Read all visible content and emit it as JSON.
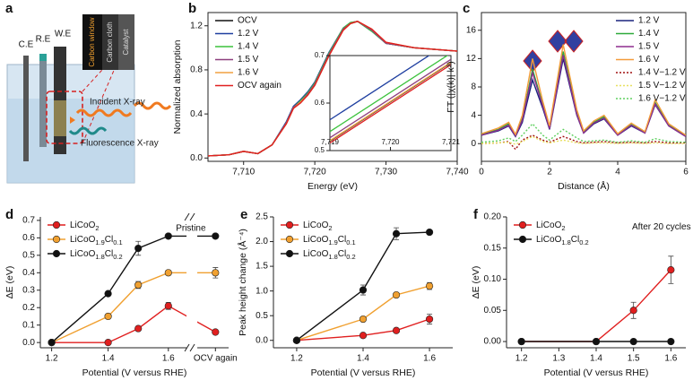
{
  "diagram": {
    "label": "a",
    "electrodes": [
      "C.E",
      "R.E",
      "W.E"
    ],
    "layers": [
      "Carbon window",
      "Carbon cloth",
      "Catalyst"
    ],
    "incident": "Incident X-ray",
    "fluorescence": "Fluorescence X-ray"
  },
  "chart_data": [
    {
      "type": "line",
      "label": "b",
      "x_label": "Energy (eV)",
      "y_label": "Normalized absorption",
      "x": [
        7705,
        7708,
        7710,
        7712,
        7714,
        7716,
        7717,
        7718,
        7719,
        7720,
        7722,
        7724,
        7725,
        7726,
        7728,
        7730,
        7734,
        7740
      ],
      "xlim": [
        7705,
        7740
      ],
      "xticks": [
        {
          "value": 7710,
          "label": "7,710"
        },
        {
          "value": 7720,
          "label": "7,720"
        },
        {
          "value": 7730,
          "label": "7,730"
        },
        {
          "value": 7740,
          "label": "7,740"
        }
      ],
      "ylim": [
        -0.03,
        1.32
      ],
      "yticks": [
        {
          "value": 0,
          "label": "0.0"
        },
        0.4,
        0.8,
        1.2
      ],
      "legend": "upper left",
      "series": [
        {
          "name": "OCV",
          "color": "#111111",
          "values": [
            0.02,
            0.03,
            0.06,
            0.04,
            0.12,
            0.32,
            0.46,
            0.51,
            0.57,
            0.66,
            0.93,
            1.17,
            1.22,
            1.24,
            1.16,
            1.04,
            1.0,
            0.97
          ]
        },
        {
          "name": "1.2 V",
          "color": "#1f3fa0",
          "values": [
            0.02,
            0.03,
            0.06,
            0.04,
            0.12,
            0.33,
            0.47,
            0.53,
            0.6,
            0.69,
            0.96,
            1.18,
            1.23,
            1.24,
            1.15,
            1.04,
            1.0,
            0.97
          ]
        },
        {
          "name": "1.4 V",
          "color": "#3cc23c",
          "values": [
            0.02,
            0.03,
            0.06,
            0.04,
            0.12,
            0.32,
            0.46,
            0.52,
            0.59,
            0.68,
            0.95,
            1.18,
            1.23,
            1.24,
            1.15,
            1.04,
            1.0,
            0.97
          ]
        },
        {
          "name": "1.5 V",
          "color": "#8e3f7e",
          "values": [
            0.02,
            0.03,
            0.06,
            0.04,
            0.12,
            0.32,
            0.46,
            0.51,
            0.58,
            0.67,
            0.94,
            1.17,
            1.22,
            1.24,
            1.16,
            1.04,
            1.0,
            0.97
          ]
        },
        {
          "name": "1.6 V",
          "color": "#f0a040",
          "values": [
            0.02,
            0.03,
            0.06,
            0.04,
            0.12,
            0.31,
            0.45,
            0.51,
            0.57,
            0.66,
            0.93,
            1.16,
            1.22,
            1.24,
            1.17,
            1.05,
            1.0,
            0.97
          ]
        },
        {
          "name": "OCV again",
          "color": "#e02020",
          "values": [
            0.02,
            0.03,
            0.06,
            0.04,
            0.12,
            0.31,
            0.45,
            0.5,
            0.57,
            0.66,
            0.93,
            1.16,
            1.22,
            1.24,
            1.17,
            1.05,
            1.0,
            0.97
          ]
        }
      ]
    },
    {
      "type": "line",
      "x": [
        7719,
        7721
      ],
      "xlim": [
        7719,
        7721
      ],
      "xticks": [
        {
          "value": 7719,
          "label": "7,719"
        },
        {
          "value": 7720,
          "label": "7,720"
        },
        {
          "value": 7721,
          "label": "7,721"
        }
      ],
      "ylim": [
        0.5,
        0.7
      ],
      "yticks": [
        0.5,
        0.6,
        0.7
      ],
      "series": [
        {
          "color": "#111111",
          "values": [
            0.52,
            0.685
          ]
        },
        {
          "color": "#1f3fa0",
          "values": [
            0.565,
            0.73
          ]
        },
        {
          "color": "#3cc23c",
          "values": [
            0.54,
            0.705
          ]
        },
        {
          "color": "#8e3f7e",
          "values": [
            0.527,
            0.692
          ]
        },
        {
          "color": "#f0a040",
          "values": [
            0.521,
            0.686
          ]
        },
        {
          "color": "#e02020",
          "values": [
            0.516,
            0.681
          ]
        }
      ]
    },
    {
      "type": "line",
      "label": "c",
      "x_label": "Distance (Å)",
      "y_label": "FT (|χ(k)| k³)",
      "x": [
        0,
        0.5,
        0.8,
        1.0,
        1.2,
        1.5,
        1.8,
        2.0,
        2.4,
        2.8,
        3.0,
        3.3,
        3.6,
        4.0,
        4.4,
        4.8,
        5.1,
        5.5,
        6.0
      ],
      "xlim": [
        0,
        6
      ],
      "xticks": [
        0,
        2,
        4,
        6
      ],
      "ylim": [
        -2.5,
        18.5
      ],
      "yticks": [
        0,
        4,
        8,
        12,
        16
      ],
      "legend": "upper right",
      "series": [
        {
          "name": "1.2 V",
          "color": "#1a237e",
          "values": [
            1.2,
            1.8,
            2.5,
            1.0,
            3,
            9,
            5,
            2,
            12,
            4,
            1.5,
            2.8,
            3.5,
            1.2,
            2.5,
            1.5,
            5.5,
            2.5,
            1.0
          ]
        },
        {
          "name": "1.4 V",
          "color": "#2eaa3a",
          "values": [
            1.3,
            2,
            2.8,
            1.2,
            3.5,
            10.5,
            5.5,
            2.2,
            13,
            4.3,
            1.6,
            3,
            3.8,
            1.3,
            2.7,
            1.6,
            5.8,
            2.6,
            1.1
          ]
        },
        {
          "name": "1.5 V",
          "color": "#8e2d8e",
          "values": [
            1.2,
            1.9,
            2.6,
            1.1,
            3.3,
            10,
            5.3,
            2.1,
            12.5,
            4.1,
            1.5,
            2.9,
            3.6,
            1.2,
            2.6,
            1.5,
            5.6,
            2.5,
            1.0
          ]
        },
        {
          "name": "1.6 V",
          "color": "#f39c3a",
          "values": [
            1.4,
            2.2,
            3.0,
            1.3,
            4,
            12,
            6,
            2.5,
            14,
            4.8,
            1.8,
            3.2,
            4,
            1.4,
            2.9,
            1.7,
            6.2,
            2.8,
            1.2
          ]
        },
        {
          "name": "1.4 V−1.2 V",
          "color": "#a01010",
          "dash": true,
          "values": [
            0,
            0.1,
            0.3,
            -0.8,
            0.5,
            1.2,
            0.5,
            0.2,
            1.0,
            0.3,
            0.1,
            0.2,
            0.3,
            0.1,
            0.2,
            0.1,
            0.3,
            0.1,
            0.1
          ]
        },
        {
          "name": "1.5 V−1.2 V",
          "color": "#e8e060",
          "dash": true,
          "values": [
            0,
            0.1,
            0.2,
            -0.1,
            0.3,
            1.0,
            0.3,
            0.1,
            0.5,
            0.1,
            0,
            0.1,
            0.1,
            0,
            0.1,
            0,
            0.1,
            0,
            0
          ]
        },
        {
          "name": "1.6 V−1.2 V",
          "color": "#60d060",
          "dash": true,
          "values": [
            0.2,
            0.4,
            0.8,
            0.3,
            1.2,
            2.8,
            1.2,
            0.5,
            2.0,
            0.8,
            0.3,
            0.4,
            0.5,
            0.2,
            0.4,
            0.2,
            0.7,
            0.3,
            0.2
          ]
        }
      ]
    },
    {
      "type": "line",
      "label": "d",
      "x_label": "Potential (V versus RHE)",
      "y_label": "ΔE (eV)",
      "annotation": "Pristine",
      "categories": [
        "1.2",
        "1.4",
        null,
        "1.6",
        "OCV again"
      ],
      "markers": true,
      "ylim": [
        -0.03,
        0.72
      ],
      "yticks": [
        {
          "value": 0,
          "label": "0.0"
        },
        0.1,
        0.2,
        0.3,
        0.4,
        0.5,
        0.6,
        0.7
      ],
      "legend": "upper left",
      "series": [
        {
          "name": "LiCoO2",
          "color": "#e01f1f",
          "values": [
            0,
            0,
            0.08,
            0.21,
            0.06
          ],
          "errors": [
            0,
            0,
            0.01,
            0.02,
            0.01
          ]
        },
        {
          "name": "LiCoO1.9Cl0.1",
          "color": "#f0a030",
          "values": [
            0,
            0.15,
            0.33,
            0.4,
            0.4
          ],
          "errors": [
            0,
            0.01,
            0.02,
            0.01,
            0.03
          ]
        },
        {
          "name": "LiCoO1.8Cl0.2",
          "color": "#111111",
          "values": [
            0,
            0.28,
            0.54,
            0.61,
            0.61
          ],
          "errors": [
            0,
            0.01,
            0.04,
            0.01,
            0.01
          ]
        }
      ]
    },
    {
      "type": "line",
      "label": "e",
      "x_label": "Potential (V versus RHE)",
      "y_label": "Peak height change (Å⁻⁴)",
      "x": [
        1.2,
        1.4,
        1.5,
        1.6
      ],
      "xlim": [
        1.13,
        1.67
      ],
      "xticks": [
        1.2,
        1.4,
        1.6
      ],
      "markers": true,
      "ylim": [
        -0.15,
        2.5
      ],
      "yticks": [
        {
          "value": 0,
          "label": "0.0"
        },
        0.5,
        {
          "value": 1,
          "label": "1.0"
        },
        1.5,
        {
          "value": 2,
          "label": "2.0"
        },
        2.5
      ],
      "legend": "upper left",
      "series": [
        {
          "name": "LiCoO2",
          "color": "#e01f1f",
          "values": [
            0,
            0.1,
            0.2,
            0.43
          ],
          "errors": [
            0,
            0.02,
            0.03,
            0.1
          ]
        },
        {
          "name": "LiCoO1.9Cl0.1",
          "color": "#f0a030",
          "values": [
            0,
            0.43,
            0.92,
            1.1
          ],
          "errors": [
            0,
            0.02,
            0.03,
            0.07
          ]
        },
        {
          "name": "LiCoO1.8Cl0.2",
          "color": "#111111",
          "values": [
            0,
            1.02,
            2.16,
            2.19
          ],
          "errors": [
            0,
            0.1,
            0.12,
            0.03
          ]
        }
      ]
    },
    {
      "type": "line",
      "label": "f",
      "x_label": "Potential (V versus RHE)",
      "y_label": "ΔE (eV)",
      "annotation": "After 20 cycles",
      "x": [
        1.2,
        1.4,
        1.5,
        1.6
      ],
      "xlim": [
        1.16,
        1.64
      ],
      "xticks": [
        1.2,
        1.3,
        1.4,
        1.5,
        1.6
      ],
      "markers": true,
      "ylim": [
        -0.01,
        0.2
      ],
      "yticks": [
        {
          "value": 0,
          "label": "0.00"
        },
        0.05,
        {
          "value": 0.1,
          "label": "0.10"
        },
        0.15,
        {
          "value": 0.2,
          "label": "0.20"
        }
      ],
      "legend": "upper left",
      "series": [
        {
          "name": "LiCoO2",
          "color": "#e01f1f",
          "values": [
            0,
            0,
            0.05,
            0.115
          ],
          "errors": [
            0,
            0,
            0.013,
            0.022
          ]
        },
        {
          "name": "LiCoO1.8Cl0.2",
          "color": "#111111",
          "values": [
            0,
            0,
            0,
            0
          ],
          "errors": [
            0,
            0,
            0,
            0
          ]
        }
      ]
    }
  ]
}
